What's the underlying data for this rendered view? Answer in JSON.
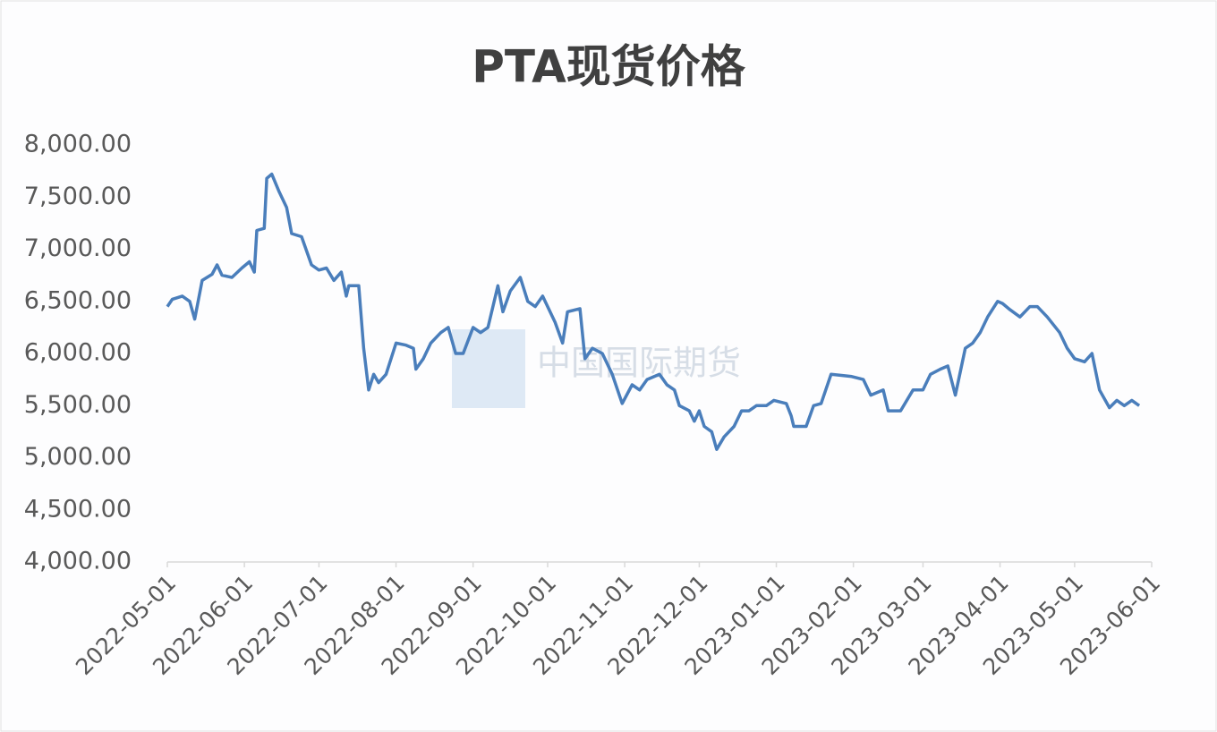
{
  "chart_data": {
    "type": "line",
    "title": "PTA现货价格",
    "watermark": "中国国际期货",
    "color": "#4a7ebb",
    "x": [
      "2022-05-01",
      "2022-05-03",
      "2022-05-07",
      "2022-05-10",
      "2022-05-12",
      "2022-05-15",
      "2022-05-19",
      "2022-05-21",
      "2022-05-23",
      "2022-05-27",
      "2022-05-31",
      "2022-06-03",
      "2022-06-05",
      "2022-06-06",
      "2022-06-09",
      "2022-06-10",
      "2022-06-12",
      "2022-06-15",
      "2022-06-18",
      "2022-06-20",
      "2022-06-24",
      "2022-06-28",
      "2022-07-01",
      "2022-07-04",
      "2022-07-07",
      "2022-07-10",
      "2022-07-12",
      "2022-07-13",
      "2022-07-17",
      "2022-07-19",
      "2022-07-21",
      "2022-07-23",
      "2022-07-25",
      "2022-07-28",
      "2022-08-01",
      "2022-08-05",
      "2022-08-08",
      "2022-08-09",
      "2022-08-12",
      "2022-08-15",
      "2022-08-19",
      "2022-08-22",
      "2022-08-25",
      "2022-08-28",
      "2022-09-01",
      "2022-09-04",
      "2022-09-07",
      "2022-09-11",
      "2022-09-13",
      "2022-09-16",
      "2022-09-20",
      "2022-09-23",
      "2022-09-26",
      "2022-09-29",
      "2022-10-04",
      "2022-10-07",
      "2022-10-09",
      "2022-10-14",
      "2022-10-16",
      "2022-10-19",
      "2022-10-23",
      "2022-10-27",
      "2022-10-31",
      "2022-11-04",
      "2022-11-07",
      "2022-11-10",
      "2022-11-15",
      "2022-11-18",
      "2022-11-21",
      "2022-11-23",
      "2022-11-27",
      "2022-11-29",
      "2022-12-01",
      "2022-12-03",
      "2022-12-06",
      "2022-12-08",
      "2022-12-11",
      "2022-12-15",
      "2022-12-18",
      "2022-12-21",
      "2022-12-24",
      "2022-12-28",
      "2022-12-31",
      "2023-01-05",
      "2023-01-07",
      "2023-01-08",
      "2023-01-13",
      "2023-01-16",
      "2023-01-19",
      "2023-01-23",
      "2023-01-31",
      "2023-02-05",
      "2023-02-08",
      "2023-02-13",
      "2023-02-15",
      "2023-02-20",
      "2023-02-25",
      "2023-03-01",
      "2023-03-04",
      "2023-03-08",
      "2023-03-11",
      "2023-03-14",
      "2023-03-18",
      "2023-03-21",
      "2023-03-24",
      "2023-03-27",
      "2023-03-31",
      "2023-04-02",
      "2023-04-05",
      "2023-04-09",
      "2023-04-13",
      "2023-04-16",
      "2023-04-20",
      "2023-04-25",
      "2023-04-28",
      "2023-05-01",
      "2023-05-05",
      "2023-05-08",
      "2023-05-11",
      "2023-05-15",
      "2023-05-18",
      "2023-05-21",
      "2023-05-24",
      "2023-05-27"
    ],
    "values": [
      6450,
      6520,
      6550,
      6500,
      6330,
      6700,
      6760,
      6850,
      6750,
      6730,
      6820,
      6880,
      6780,
      7180,
      7200,
      7680,
      7720,
      7550,
      7400,
      7150,
      7120,
      6850,
      6800,
      6820,
      6700,
      6780,
      6550,
      6650,
      6650,
      6050,
      5650,
      5800,
      5720,
      5800,
      6100,
      6080,
      6050,
      5850,
      5950,
      6100,
      6200,
      6250,
      6000,
      6000,
      6250,
      6200,
      6250,
      6650,
      6400,
      6600,
      6730,
      6500,
      6450,
      6550,
      6300,
      6100,
      6400,
      6430,
      5950,
      6050,
      6000,
      5800,
      5520,
      5700,
      5650,
      5750,
      5800,
      5700,
      5650,
      5500,
      5450,
      5350,
      5450,
      5300,
      5250,
      5080,
      5200,
      5300,
      5450,
      5450,
      5500,
      5500,
      5550,
      5520,
      5400,
      5300,
      5300,
      5500,
      5520,
      5800,
      5780,
      5750,
      5600,
      5650,
      5450,
      5450,
      5650,
      5650,
      5800,
      5850,
      5880,
      5600,
      6050,
      6100,
      6200,
      6350,
      6500,
      6480,
      6420,
      6350,
      6450,
      6450,
      6350,
      6200,
      6050,
      5950,
      5920,
      6000,
      5650,
      5480,
      5550,
      5500,
      5550,
      5500
    ],
    "xlim": [
      "2022-05-01",
      "2023-06-01"
    ],
    "xticks": [
      "2022-05-01",
      "2022-06-01",
      "2022-07-01",
      "2022-08-01",
      "2022-09-01",
      "2022-10-01",
      "2022-11-01",
      "2022-12-01",
      "2023-01-01",
      "2023-02-01",
      "2023-03-01",
      "2023-04-01",
      "2023-05-01",
      "2023-06-01"
    ],
    "ylim": [
      4000,
      8000
    ],
    "yticks": [
      {
        "value": 4000,
        "label": "4,000.00"
      },
      {
        "value": 4500,
        "label": "4,500.00"
      },
      {
        "value": 5000,
        "label": "5,000.00"
      },
      {
        "value": 5500,
        "label": "5,500.00"
      },
      {
        "value": 6000,
        "label": "6,000.00"
      },
      {
        "value": 6500,
        "label": "6,500.00"
      },
      {
        "value": 7000,
        "label": "7,000.00"
      },
      {
        "value": 7500,
        "label": "7,500.00"
      },
      {
        "value": 8000,
        "label": "8,000.00"
      }
    ]
  }
}
